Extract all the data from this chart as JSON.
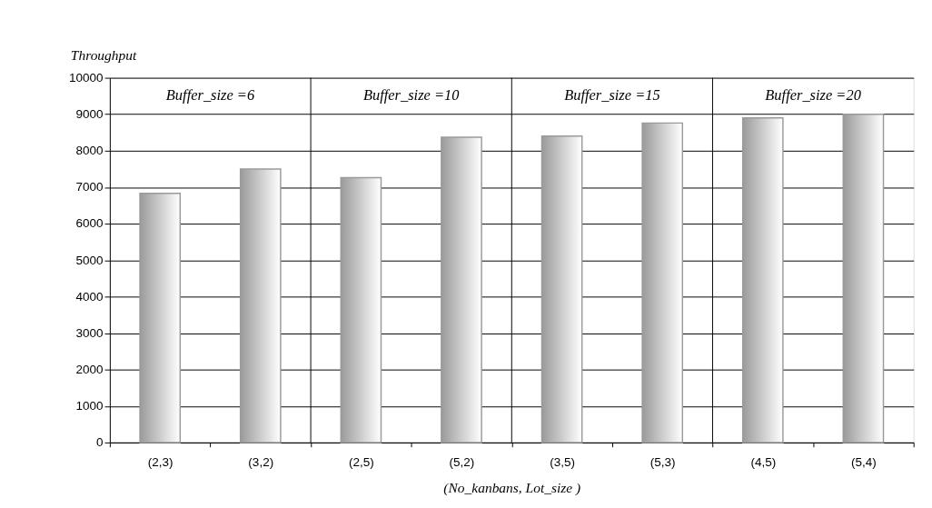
{
  "chart_data": {
    "type": "bar",
    "ylabel": "Throughput",
    "xlabel": "(No_kanbans, Lot_size )",
    "categories": [
      "(2,3)",
      "(3,2)",
      "(2,5)",
      "(5,2)",
      "(3,5)",
      "(5,3)",
      "(4,5)",
      "(5,4)"
    ],
    "values": [
      6830,
      7500,
      7260,
      8370,
      8400,
      8760,
      8900,
      9000
    ],
    "color": "#9a9a9a",
    "ylim": [
      0,
      10000
    ],
    "yticks": [
      0,
      1000,
      2000,
      3000,
      4000,
      5000,
      6000,
      7000,
      8000,
      9000,
      10000
    ],
    "grid": "y",
    "annotations": [
      "Buffer_size =6",
      "Buffer_size =10",
      "Buffer_size =15",
      "Buffer_size =20"
    ]
  }
}
